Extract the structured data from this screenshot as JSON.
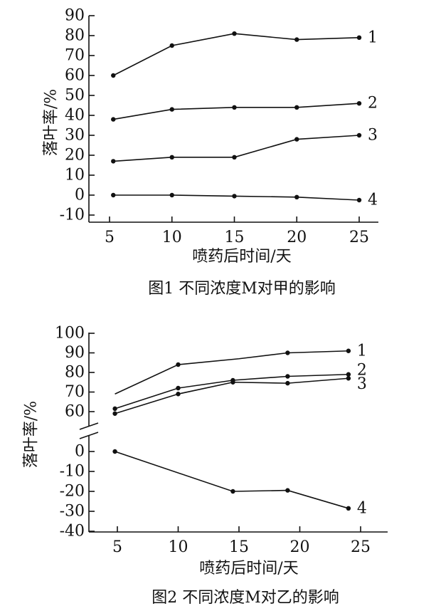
{
  "chart_data": [
    {
      "type": "line",
      "title": "图1 不同浓度M对甲的影响",
      "xlabel": "喷药后时间/天",
      "ylabel": "落叶率/%",
      "x_ticks": [
        "5",
        "10",
        "15",
        "20",
        "25"
      ],
      "y_ticks": [
        "90",
        "80",
        "70",
        "60",
        "50",
        "40",
        "30",
        "20",
        "10",
        "0",
        "-10"
      ],
      "xlim": [
        3,
        26
      ],
      "ylim": [
        -10,
        90
      ],
      "grid": false,
      "series": [
        {
          "name": "1",
          "x": [
            5.3,
            10,
            15,
            20,
            25
          ],
          "y": [
            60,
            75,
            81,
            78,
            79
          ]
        },
        {
          "name": "2",
          "x": [
            5.3,
            10,
            15,
            20,
            25
          ],
          "y": [
            38,
            43,
            44,
            44,
            46
          ]
        },
        {
          "name": "3",
          "x": [
            5.3,
            10,
            15,
            20,
            25
          ],
          "y": [
            17,
            19,
            19,
            28,
            30
          ]
        },
        {
          "name": "4",
          "x": [
            5.3,
            10,
            15,
            20,
            25
          ],
          "y": [
            0,
            0,
            -0.5,
            -1,
            -2.5
          ]
        }
      ]
    },
    {
      "type": "line",
      "title": "图2 不同浓度M对乙的影响",
      "xlabel": "喷药后时间/天",
      "ylabel": "落叶率/%",
      "x_ticks": [
        "5",
        "10",
        "15",
        "20",
        "25"
      ],
      "y_ticks_upper": [
        "100",
        "90",
        "80",
        "70",
        "60"
      ],
      "y_ticks_lower": [
        "0",
        "-10",
        "-20",
        "-30",
        "-40"
      ],
      "xlim": [
        3,
        27
      ],
      "ylim_upper": [
        55,
        100
      ],
      "ylim_lower": [
        -40,
        0
      ],
      "axis_break": true,
      "grid": false,
      "series": [
        {
          "name": "1",
          "x": [
            4.8,
            10,
            15,
            19,
            24
          ],
          "y": [
            69,
            84,
            87,
            90,
            91
          ]
        },
        {
          "name": "2",
          "x": [
            4.8,
            10,
            14.5,
            19,
            24
          ],
          "y": [
            61.5,
            72,
            76,
            78,
            79
          ]
        },
        {
          "name": "3",
          "x": [
            4.8,
            10,
            14.5,
            19,
            24
          ],
          "y": [
            59,
            69,
            75,
            74.5,
            77
          ]
        },
        {
          "name": "4",
          "x": [
            4.8,
            14.5,
            19,
            24
          ],
          "y": [
            0,
            -20,
            -19.5,
            -28.5
          ]
        }
      ]
    }
  ]
}
